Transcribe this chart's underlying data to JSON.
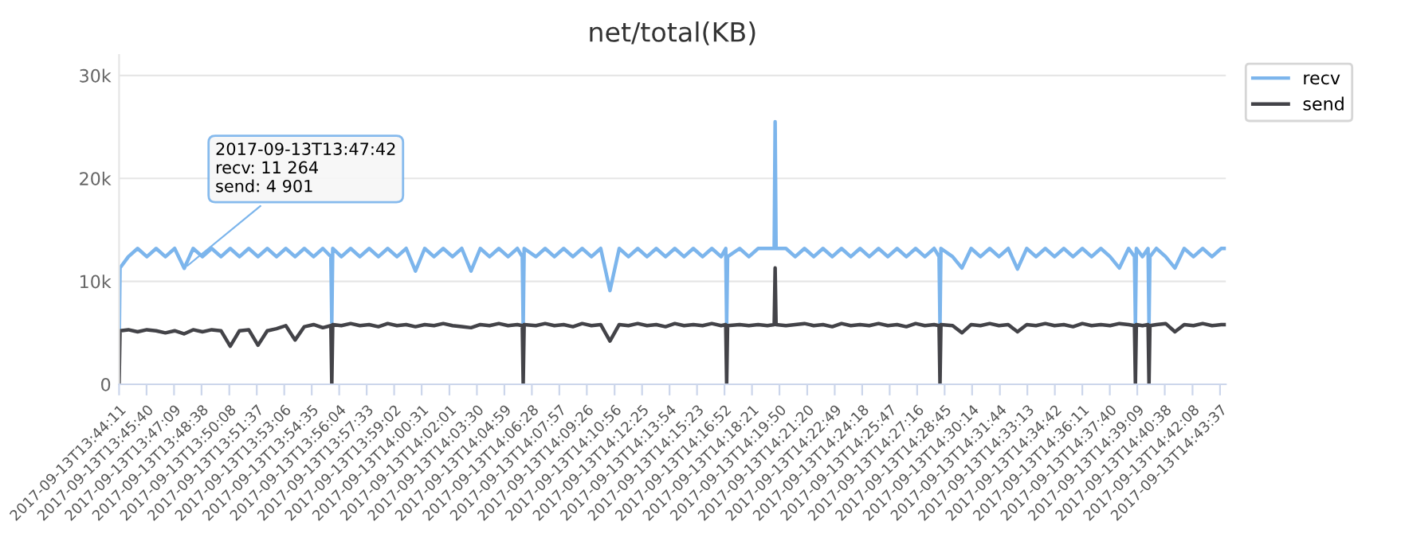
{
  "chart_data": {
    "type": "line",
    "title": "net/total(KB)",
    "x": [
      "2017-09-13T13:44:11",
      "2017-09-13T13:44:14",
      "2017-09-13T13:44:41",
      "2017-09-13T13:45:11",
      "2017-09-13T13:45:41",
      "2017-09-13T13:46:11",
      "2017-09-13T13:46:41",
      "2017-09-13T13:47:11",
      "2017-09-13T13:47:42",
      "2017-09-13T13:48:11",
      "2017-09-13T13:48:41",
      "2017-09-13T13:49:11",
      "2017-09-13T13:49:41",
      "2017-09-13T13:50:11",
      "2017-09-13T13:50:41",
      "2017-09-13T13:51:11",
      "2017-09-13T13:51:41",
      "2017-09-13T13:52:11",
      "2017-09-13T13:52:41",
      "2017-09-13T13:53:11",
      "2017-09-13T13:53:41",
      "2017-09-13T13:54:11",
      "2017-09-13T13:54:41",
      "2017-09-13T13:55:11",
      "2017-09-13T13:55:37",
      "2017-09-13T13:55:40",
      "2017-09-13T13:55:43",
      "2017-09-13T13:56:11",
      "2017-09-13T13:56:41",
      "2017-09-13T13:57:11",
      "2017-09-13T13:57:41",
      "2017-09-13T13:58:11",
      "2017-09-13T13:58:41",
      "2017-09-13T13:59:11",
      "2017-09-13T13:59:41",
      "2017-09-13T14:00:11",
      "2017-09-13T14:00:41",
      "2017-09-13T14:01:11",
      "2017-09-13T14:01:41",
      "2017-09-13T14:02:11",
      "2017-09-13T14:02:41",
      "2017-09-13T14:03:11",
      "2017-09-13T14:03:41",
      "2017-09-13T14:04:11",
      "2017-09-13T14:04:41",
      "2017-09-13T14:05:11",
      "2017-09-13T14:05:41",
      "2017-09-13T14:05:57",
      "2017-09-13T14:06:00",
      "2017-09-13T14:06:03",
      "2017-09-13T14:06:41",
      "2017-09-13T14:07:11",
      "2017-09-13T14:07:41",
      "2017-09-13T14:08:11",
      "2017-09-13T14:08:41",
      "2017-09-13T14:09:11",
      "2017-09-13T14:09:41",
      "2017-09-13T14:10:11",
      "2017-09-13T14:10:41",
      "2017-09-13T14:11:11",
      "2017-09-13T14:11:41",
      "2017-09-13T14:12:11",
      "2017-09-13T14:12:41",
      "2017-09-13T14:13:11",
      "2017-09-13T14:13:41",
      "2017-09-13T14:14:11",
      "2017-09-13T14:14:41",
      "2017-09-13T14:15:11",
      "2017-09-13T14:15:41",
      "2017-09-13T14:16:11",
      "2017-09-13T14:16:41",
      "2017-09-13T14:16:56",
      "2017-09-13T14:16:59",
      "2017-09-13T14:17:02",
      "2017-09-13T14:17:41",
      "2017-09-13T14:18:11",
      "2017-09-13T14:18:41",
      "2017-09-13T14:19:11",
      "2017-09-13T14:19:33",
      "2017-09-13T14:19:36",
      "2017-09-13T14:19:39",
      "2017-09-13T14:20:11",
      "2017-09-13T14:20:41",
      "2017-09-13T14:21:11",
      "2017-09-13T14:21:41",
      "2017-09-13T14:22:11",
      "2017-09-13T14:22:41",
      "2017-09-13T14:23:11",
      "2017-09-13T14:23:41",
      "2017-09-13T14:24:11",
      "2017-09-13T14:24:41",
      "2017-09-13T14:25:11",
      "2017-09-13T14:25:41",
      "2017-09-13T14:26:11",
      "2017-09-13T14:26:41",
      "2017-09-13T14:27:11",
      "2017-09-13T14:27:41",
      "2017-09-13T14:28:11",
      "2017-09-13T14:28:27",
      "2017-09-13T14:28:30",
      "2017-09-13T14:28:33",
      "2017-09-13T14:29:11",
      "2017-09-13T14:29:41",
      "2017-09-13T14:30:11",
      "2017-09-13T14:30:41",
      "2017-09-13T14:31:11",
      "2017-09-13T14:31:41",
      "2017-09-13T14:32:11",
      "2017-09-13T14:32:41",
      "2017-09-13T14:33:11",
      "2017-09-13T14:33:41",
      "2017-09-13T14:34:11",
      "2017-09-13T14:34:41",
      "2017-09-13T14:35:11",
      "2017-09-13T14:35:41",
      "2017-09-13T14:36:11",
      "2017-09-13T14:36:41",
      "2017-09-13T14:37:11",
      "2017-09-13T14:37:41",
      "2017-09-13T14:38:11",
      "2017-09-13T14:38:41",
      "2017-09-13T14:39:00",
      "2017-09-13T14:39:03",
      "2017-09-13T14:39:06",
      "2017-09-13T14:39:26",
      "2017-09-13T14:39:44",
      "2017-09-13T14:39:47",
      "2017-09-13T14:39:50",
      "2017-09-13T14:40:11",
      "2017-09-13T14:40:41",
      "2017-09-13T14:41:11",
      "2017-09-13T14:41:41",
      "2017-09-13T14:42:11",
      "2017-09-13T14:42:41",
      "2017-09-13T14:43:11",
      "2017-09-13T14:43:41",
      "2017-09-13T14:43:56"
    ],
    "series": [
      {
        "name": "recv",
        "color": "#7cb5ec",
        "values": [
          3000,
          11300,
          12400,
          13200,
          12400,
          13200,
          12400,
          13200,
          11264,
          13200,
          12400,
          13200,
          12400,
          13200,
          12400,
          13200,
          12400,
          13200,
          12400,
          13200,
          12400,
          13200,
          12400,
          13200,
          12400,
          6000,
          13200,
          12400,
          13200,
          12400,
          13200,
          12400,
          13200,
          12400,
          13200,
          11000,
          13200,
          12400,
          13200,
          12400,
          13200,
          11000,
          13200,
          12400,
          13200,
          12400,
          13200,
          12400,
          5500,
          13200,
          12400,
          13200,
          12400,
          13200,
          12400,
          13200,
          12400,
          13200,
          9100,
          13200,
          12400,
          13200,
          12400,
          13200,
          12400,
          13200,
          12400,
          13200,
          12400,
          13200,
          12400,
          13200,
          5800,
          12400,
          13200,
          12400,
          13200,
          13200,
          13200,
          25500,
          13200,
          13200,
          12400,
          13200,
          12400,
          13200,
          12400,
          13200,
          12400,
          13200,
          12400,
          13200,
          12400,
          13200,
          12400,
          13200,
          12400,
          13200,
          12400,
          5700,
          13200,
          12400,
          11300,
          13200,
          12400,
          13200,
          12400,
          13200,
          11200,
          13200,
          12400,
          13200,
          12400,
          13200,
          12400,
          13200,
          12400,
          13200,
          12400,
          11300,
          13200,
          12400,
          5800,
          13200,
          12400,
          13200,
          5800,
          12400,
          13200,
          12400,
          11300,
          13200,
          12400,
          13200,
          12400,
          13200,
          13200
        ]
      },
      {
        "name": "send",
        "color": "#434348",
        "values": [
          0,
          5200,
          5300,
          5100,
          5300,
          5200,
          5000,
          5200,
          4901,
          5300,
          5100,
          5300,
          5200,
          3700,
          5200,
          5300,
          3800,
          5200,
          5400,
          5700,
          4300,
          5600,
          5800,
          5500,
          5700,
          0,
          5800,
          5700,
          5900,
          5700,
          5800,
          5600,
          5900,
          5700,
          5800,
          5600,
          5800,
          5700,
          5900,
          5700,
          5600,
          5500,
          5800,
          5700,
          5900,
          5700,
          5800,
          5700,
          0,
          5800,
          5700,
          5900,
          5700,
          5800,
          5600,
          5900,
          5700,
          5800,
          4200,
          5800,
          5700,
          5900,
          5700,
          5800,
          5600,
          5900,
          5700,
          5800,
          5700,
          5900,
          5700,
          5800,
          0,
          5700,
          5800,
          5700,
          5800,
          5700,
          5800,
          11300,
          5800,
          5700,
          5800,
          5900,
          5700,
          5800,
          5600,
          5900,
          5700,
          5800,
          5700,
          5900,
          5700,
          5800,
          5600,
          5900,
          5700,
          5800,
          5700,
          0,
          5800,
          5700,
          5000,
          5800,
          5700,
          5900,
          5700,
          5800,
          5100,
          5800,
          5700,
          5900,
          5700,
          5800,
          5600,
          5900,
          5700,
          5800,
          5700,
          5900,
          5800,
          5700,
          0,
          5800,
          5700,
          5800,
          0,
          5700,
          5800,
          5900,
          5100,
          5800,
          5700,
          5900,
          5700,
          5800,
          5800
        ]
      }
    ],
    "xlim": [
      "2017-09-13T13:44:11",
      "2017-09-13T14:43:56"
    ],
    "xticks": [
      {
        "value": "2017-09-13T13:44:11",
        "label": "2017-09-13T13:44:11"
      },
      {
        "value": "2017-09-13T13:45:40",
        "label": "2017-09-13T13:45:40"
      },
      {
        "value": "2017-09-13T13:47:09",
        "label": "2017-09-13T13:47:09"
      },
      {
        "value": "2017-09-13T13:48:38",
        "label": "2017-09-13T13:48:38"
      },
      {
        "value": "2017-09-13T13:50:08",
        "label": "2017-09-13T13:50:08"
      },
      {
        "value": "2017-09-13T13:51:37",
        "label": "2017-09-13T13:51:37"
      },
      {
        "value": "2017-09-13T13:53:06",
        "label": "2017-09-13T13:53:06"
      },
      {
        "value": "2017-09-13T13:54:35",
        "label": "2017-09-13T13:54:35"
      },
      {
        "value": "2017-09-13T13:56:04",
        "label": "2017-09-13T13:56:04"
      },
      {
        "value": "2017-09-13T13:57:33",
        "label": "2017-09-13T13:57:33"
      },
      {
        "value": "2017-09-13T13:59:02",
        "label": "2017-09-13T13:59:02"
      },
      {
        "value": "2017-09-13T14:00:31",
        "label": "2017-09-13T14:00:31"
      },
      {
        "value": "2017-09-13T14:02:01",
        "label": "2017-09-13T14:02:01"
      },
      {
        "value": "2017-09-13T14:03:30",
        "label": "2017-09-13T14:03:30"
      },
      {
        "value": "2017-09-13T14:04:59",
        "label": "2017-09-13T14:04:59"
      },
      {
        "value": "2017-09-13T14:06:28",
        "label": "2017-09-13T14:06:28"
      },
      {
        "value": "2017-09-13T14:07:57",
        "label": "2017-09-13T14:07:57"
      },
      {
        "value": "2017-09-13T14:09:26",
        "label": "2017-09-13T14:09:26"
      },
      {
        "value": "2017-09-13T14:10:56",
        "label": "2017-09-13T14:10:56"
      },
      {
        "value": "2017-09-13T14:12:25",
        "label": "2017-09-13T14:12:25"
      },
      {
        "value": "2017-09-13T14:13:54",
        "label": "2017-09-13T14:13:54"
      },
      {
        "value": "2017-09-13T14:15:23",
        "label": "2017-09-13T14:15:23"
      },
      {
        "value": "2017-09-13T14:16:52",
        "label": "2017-09-13T14:16:52"
      },
      {
        "value": "2017-09-13T14:18:21",
        "label": "2017-09-13T14:18:21"
      },
      {
        "value": "2017-09-13T14:19:50",
        "label": "2017-09-13T14:19:50"
      },
      {
        "value": "2017-09-13T14:21:20",
        "label": "2017-09-13T14:21:20"
      },
      {
        "value": "2017-09-13T14:22:49",
        "label": "2017-09-13T14:22:49"
      },
      {
        "value": "2017-09-13T14:24:18",
        "label": "2017-09-13T14:24:18"
      },
      {
        "value": "2017-09-13T14:25:47",
        "label": "2017-09-13T14:25:47"
      },
      {
        "value": "2017-09-13T14:27:16",
        "label": "2017-09-13T14:27:16"
      },
      {
        "value": "2017-09-13T14:28:45",
        "label": "2017-09-13T14:28:45"
      },
      {
        "value": "2017-09-13T14:30:14",
        "label": "2017-09-13T14:30:14"
      },
      {
        "value": "2017-09-13T14:31:44",
        "label": "2017-09-13T14:31:44"
      },
      {
        "value": "2017-09-13T14:33:13",
        "label": "2017-09-13T14:33:13"
      },
      {
        "value": "2017-09-13T14:34:42",
        "label": "2017-09-13T14:34:42"
      },
      {
        "value": "2017-09-13T14:36:11",
        "label": "2017-09-13T14:36:11"
      },
      {
        "value": "2017-09-13T14:37:40",
        "label": "2017-09-13T14:37:40"
      },
      {
        "value": "2017-09-13T14:39:09",
        "label": "2017-09-13T14:39:09"
      },
      {
        "value": "2017-09-13T14:40:38",
        "label": "2017-09-13T14:40:38"
      },
      {
        "value": "2017-09-13T14:42:08",
        "label": "2017-09-13T14:42:08"
      },
      {
        "value": "2017-09-13T14:43:37",
        "label": "2017-09-13T14:43:37"
      }
    ],
    "ylim": [
      0,
      32000
    ],
    "yticks": [
      0,
      {
        "value": 10000,
        "label": "10k"
      },
      {
        "value": 20000,
        "label": "20k"
      },
      {
        "value": 30000,
        "label": "30k"
      }
    ],
    "annotations": [
      {
        "text": "2017-09-13T13:47:42\nrecv: 11 264\nsend: 4 901",
        "x": "2017-09-13T13:47:42",
        "y": 11264
      }
    ],
    "grid": "y",
    "legend": "top right",
    "marker": "none",
    "line_style": "solid"
  }
}
